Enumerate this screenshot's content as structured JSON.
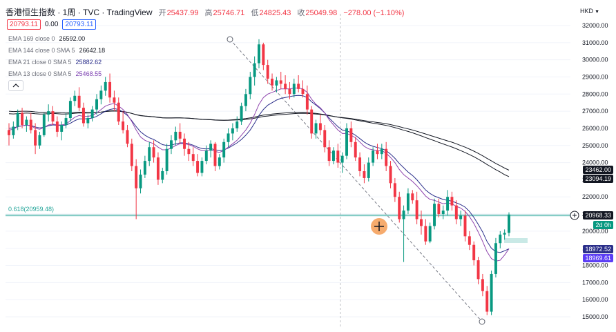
{
  "header": {
    "symbol": "香港恒生指数 · 1周 · TVC · TradingView",
    "open_label": "开",
    "open": "25437.99",
    "high_label": "高",
    "high": "25746.71",
    "low_label": "低",
    "low": "24825.43",
    "close_label": "收",
    "close": "25049.98",
    "change": "−278.00 (−1.10%)",
    "sell_price": "20793.11",
    "spread": "0.00",
    "buy_price": "20793.11",
    "currency": "HKD"
  },
  "indicators": [
    {
      "label": "EMA 169 close 0",
      "value": "26592.00",
      "color": "#131722"
    },
    {
      "label": "EMA 144 close 0 SMA 5",
      "value": "26642.18",
      "color": "#131722"
    },
    {
      "label": "EMA 21 close 0 SMA 5",
      "value": "25882.62",
      "color": "#2a2e8a"
    },
    {
      "label": "EMA 13 close 0 SMA 5",
      "value": "25468.55",
      "color": "#7b3fb0"
    }
  ],
  "colors": {
    "up": "#089981",
    "down": "#f23645",
    "ema_long": "#131722",
    "ema_21": "#2a2e8a",
    "ema_13": "#8e44ad",
    "fib": "#26a69a",
    "blue_tag": "#5b3df5"
  },
  "price_tags": {
    "ema_long_a": "23462.00",
    "ema_long_b": "23094.19",
    "last_price": "20968.33",
    "countdown": "2d 0h",
    "ema_21": "18972.52",
    "ema_13": "18969.61"
  },
  "fib_label": "0.618(20959.48)",
  "chart_data": {
    "type": "candlestick",
    "y_axis": {
      "min": 14700,
      "max": 32300,
      "ticks": [
        15000,
        16000,
        17000,
        18000,
        19000,
        20000,
        21000,
        22000,
        23000,
        24000,
        25000,
        26000,
        27000,
        28000,
        29000,
        30000,
        31000,
        32000
      ]
    },
    "candles": [
      [
        25900,
        26300,
        25000,
        25600
      ],
      [
        25600,
        26400,
        25400,
        26100
      ],
      [
        26100,
        27100,
        25900,
        26900
      ],
      [
        26900,
        27200,
        26000,
        26200
      ],
      [
        26200,
        26700,
        25800,
        26500
      ],
      [
        26500,
        26900,
        25700,
        25900
      ],
      [
        25900,
        26300,
        24500,
        25000
      ],
      [
        25000,
        25800,
        24800,
        25600
      ],
      [
        25600,
        26900,
        25500,
        26800
      ],
      [
        26800,
        27400,
        26400,
        27000
      ],
      [
        27000,
        27300,
        26200,
        26400
      ],
      [
        26400,
        26700,
        25500,
        25800
      ],
      [
        25800,
        26400,
        25300,
        26200
      ],
      [
        26200,
        26900,
        26000,
        26600
      ],
      [
        26600,
        27800,
        26400,
        27600
      ],
      [
        27600,
        28200,
        27300,
        27900
      ],
      [
        27900,
        28400,
        27000,
        27200
      ],
      [
        27200,
        27500,
        26100,
        26300
      ],
      [
        26300,
        26800,
        26000,
        26600
      ],
      [
        26600,
        27300,
        26400,
        27100
      ],
      [
        27100,
        28000,
        26800,
        27700
      ],
      [
        27700,
        28500,
        27400,
        28200
      ],
      [
        28200,
        29000,
        27900,
        28700
      ],
      [
        28700,
        29200,
        27500,
        27800
      ],
      [
        27800,
        28200,
        27000,
        27500
      ],
      [
        27500,
        27800,
        26200,
        26400
      ],
      [
        26400,
        27000,
        25700,
        25900
      ],
      [
        25900,
        26200,
        24900,
        25100
      ],
      [
        25100,
        25400,
        23500,
        23800
      ],
      [
        23800,
        24200,
        20700,
        22500
      ],
      [
        22500,
        23600,
        22200,
        23300
      ],
      [
        23300,
        24400,
        23100,
        24100
      ],
      [
        24100,
        25200,
        23800,
        24900
      ],
      [
        24900,
        25300,
        24000,
        24300
      ],
      [
        24300,
        24600,
        22700,
        23000
      ],
      [
        23000,
        23700,
        22800,
        23500
      ],
      [
        23500,
        25100,
        23300,
        24800
      ],
      [
        24800,
        25600,
        24500,
        25300
      ],
      [
        25300,
        26100,
        25000,
        25800
      ],
      [
        25800,
        26300,
        25100,
        25400
      ],
      [
        25400,
        25700,
        24400,
        24800
      ],
      [
        24800,
        25200,
        24100,
        24500
      ],
      [
        24500,
        24900,
        23800,
        24100
      ],
      [
        24100,
        24500,
        23200,
        23400
      ],
      [
        23400,
        24300,
        23200,
        24100
      ],
      [
        24100,
        25000,
        23900,
        24700
      ],
      [
        24700,
        25300,
        24300,
        25100
      ],
      [
        25100,
        25200,
        23500,
        23800
      ],
      [
        23800,
        24500,
        23600,
        24300
      ],
      [
        24300,
        25400,
        24000,
        25200
      ],
      [
        25200,
        26000,
        24900,
        25700
      ],
      [
        25700,
        26300,
        25300,
        26000
      ],
      [
        26000,
        26700,
        25800,
        26400
      ],
      [
        26400,
        27500,
        26200,
        27300
      ],
      [
        27300,
        28300,
        27000,
        28000
      ],
      [
        28000,
        29300,
        27700,
        29000
      ],
      [
        29000,
        30200,
        28500,
        29800
      ],
      [
        29800,
        31200,
        29500,
        30900
      ],
      [
        30900,
        31000,
        29400,
        29700
      ],
      [
        29700,
        30000,
        28600,
        28900
      ],
      [
        28900,
        29200,
        28200,
        28500
      ],
      [
        28500,
        29000,
        28100,
        28800
      ],
      [
        28800,
        29300,
        28300,
        28600
      ],
      [
        28600,
        29100,
        28000,
        28300
      ],
      [
        28300,
        28700,
        27700,
        28000
      ],
      [
        28000,
        28900,
        27800,
        28600
      ],
      [
        28600,
        29100,
        28100,
        28300
      ],
      [
        28300,
        28800,
        27800,
        28000
      ],
      [
        28000,
        28500,
        26800,
        27100
      ],
      [
        27100,
        27300,
        25400,
        25700
      ],
      [
        25700,
        26500,
        25400,
        26300
      ],
      [
        26300,
        26800,
        25600,
        25900
      ],
      [
        25900,
        26200,
        24600,
        24900
      ],
      [
        24900,
        25300,
        23800,
        24100
      ],
      [
        24100,
        24900,
        23900,
        24700
      ],
      [
        24700,
        25100,
        23700,
        24000
      ],
      [
        24000,
        24600,
        23400,
        24400
      ],
      [
        24400,
        26300,
        24200,
        26000
      ],
      [
        26000,
        26400,
        24900,
        25200
      ],
      [
        25200,
        25500,
        24100,
        24300
      ],
      [
        24300,
        24600,
        23200,
        23500
      ],
      [
        23500,
        23900,
        22800,
        23100
      ],
      [
        23100,
        24300,
        22900,
        24000
      ],
      [
        24000,
        24900,
        23800,
        24700
      ],
      [
        24700,
        25100,
        24200,
        24500
      ],
      [
        24500,
        25100,
        24200,
        24800
      ],
      [
        24800,
        25200,
        23500,
        23800
      ],
      [
        23800,
        24100,
        22500,
        22800
      ],
      [
        22800,
        23100,
        21700,
        22000
      ],
      [
        22000,
        22300,
        20500,
        20700
      ],
      [
        20700,
        21500,
        18200,
        21200
      ],
      [
        21200,
        22500,
        21000,
        22200
      ],
      [
        22200,
        22400,
        21600,
        21800
      ],
      [
        21800,
        22300,
        20400,
        20700
      ],
      [
        20700,
        21200,
        19800,
        20300
      ],
      [
        20300,
        20700,
        19200,
        19400
      ],
      [
        19400,
        20500,
        19300,
        20300
      ],
      [
        20300,
        21900,
        20100,
        21600
      ],
      [
        21600,
        21900,
        20800,
        21000
      ],
      [
        21000,
        21500,
        20700,
        21200
      ],
      [
        21200,
        22400,
        20900,
        22000
      ],
      [
        22000,
        22300,
        21200,
        21500
      ],
      [
        21500,
        21800,
        20400,
        20700
      ],
      [
        20700,
        21200,
        20300,
        20900
      ],
      [
        20900,
        21200,
        19400,
        19700
      ],
      [
        19700,
        20000,
        18900,
        19200
      ],
      [
        19200,
        19400,
        18000,
        18300
      ],
      [
        18300,
        18500,
        16900,
        17200
      ],
      [
        17200,
        17500,
        16200,
        16500
      ],
      [
        16500,
        16800,
        15100,
        15300
      ],
      [
        15300,
        17700,
        15100,
        17500
      ],
      [
        17500,
        19600,
        17300,
        19300
      ],
      [
        19300,
        20000,
        19000,
        19800
      ],
      [
        19800,
        20100,
        19500,
        19900
      ],
      [
        19900,
        21100,
        19700,
        20968
      ]
    ],
    "ema_13": [
      25900,
      25950,
      26100,
      26150,
      26200,
      26150,
      26000,
      25950,
      26050,
      26200,
      26250,
      26200,
      26200,
      26250,
      26450,
      26650,
      26750,
      26700,
      26700,
      26750,
      26900,
      27100,
      27300,
      27400,
      27450,
      27300,
      27100,
      26800,
      26400,
      25900,
      25500,
      25300,
      25200,
      25100,
      24900,
      24750,
      24750,
      24850,
      25000,
      25100,
      25100,
      25050,
      24950,
      24800,
      24700,
      24700,
      24750,
      24650,
      24600,
      24700,
      24900,
      25100,
      25300,
      25600,
      25900,
      26300,
      26800,
      27400,
      27800,
      28000,
      28100,
      28200,
      28300,
      28300,
      28300,
      28350,
      28350,
      28300,
      28100,
      27700,
      27400,
      27200,
      26900,
      26500,
      26200,
      25900,
      25700,
      25700,
      25600,
      25450,
      25200,
      24950,
      24800,
      24750,
      24700,
      24700,
      24550,
      24300,
      24000,
      23600,
      23300,
      23100,
      22900,
      22650,
      22350,
      22050,
      21850,
      21800,
      21700,
      21600,
      21650,
      21600,
      21450,
      21350,
      21150,
      20850,
      20450,
      19950,
      19400,
      18800,
      18400,
      18250,
      18300,
      18600,
      18970
    ],
    "ema_21": [
      26000,
      26020,
      26100,
      26150,
      26180,
      26170,
      26080,
      26030,
      26060,
      26150,
      26200,
      26180,
      26170,
      26190,
      26300,
      26450,
      26550,
      26550,
      26560,
      26600,
      26700,
      26850,
      27000,
      27100,
      27150,
      27100,
      26950,
      26750,
      26450,
      26100,
      25800,
      25600,
      25450,
      25350,
      25200,
      25050,
      25000,
      25020,
      25100,
      25150,
      25150,
      25100,
      25020,
      24900,
      24820,
      24800,
      24820,
      24750,
      24700,
      24750,
      24850,
      25000,
      25150,
      25350,
      25600,
      25900,
      26300,
      26750,
      27100,
      27350,
      27500,
      27650,
      27750,
      27800,
      27850,
      27900,
      27920,
      27900,
      27800,
      27550,
      27350,
      27150,
      26900,
      26600,
      26350,
      26100,
      25900,
      25850,
      25750,
      25600,
      25400,
      25200,
      25050,
      24950,
      24880,
      24820,
      24700,
      24500,
      24250,
      23950,
      23700,
      23450,
      23250,
      23000,
      22700,
      22400,
      22200,
      22050,
      21950,
      21850,
      21800,
      21750,
      21650,
      21550,
      21400,
      21150,
      20800,
      20400,
      19950,
      19400,
      19000,
      18800,
      18750,
      18850,
      18970
    ],
    "ema_169": [
      27000,
      26980,
      26990,
      27000,
      27000,
      26990,
      26960,
      26940,
      26940,
      26950,
      26950,
      26930,
      26910,
      26900,
      26910,
      26930,
      26940,
      26930,
      26920,
      26920,
      26930,
      26950,
      26980,
      27000,
      27010,
      27000,
      26970,
      26930,
      26870,
      26800,
      26750,
      26720,
      26700,
      26680,
      26650,
      26620,
      26610,
      26610,
      26610,
      26610,
      26600,
      26590,
      26570,
      26550,
      26530,
      26520,
      26510,
      26490,
      26480,
      26470,
      26470,
      26480,
      26490,
      26500,
      26520,
      26550,
      26590,
      26640,
      26690,
      26720,
      26750,
      26780,
      26800,
      26820,
      26840,
      26860,
      26870,
      26880,
      26870,
      26850,
      26830,
      26810,
      26780,
      26740,
      26700,
      26660,
      26630,
      26600,
      26570,
      26530,
      26490,
      26450,
      26410,
      26380,
      26340,
      26310,
      26270,
      26220,
      26160,
      26100,
      26030,
      25970,
      25900,
      25830,
      25750,
      25670,
      25590,
      25510,
      25430,
      25350,
      25270,
      25190,
      25100,
      25000,
      24900,
      24790,
      24670,
      24540,
      24400,
      24250,
      24100,
      23950,
      23820,
      23680,
      23560
    ],
    "ema_144": [
      26850,
      26840,
      26860,
      26880,
      26890,
      26880,
      26850,
      26830,
      26840,
      26860,
      26870,
      26850,
      26830,
      26830,
      26850,
      26880,
      26900,
      26890,
      26890,
      26900,
      26920,
      26950,
      26990,
      27020,
      27030,
      27020,
      26990,
      26940,
      26870,
      26790,
      26740,
      26710,
      26690,
      26670,
      26640,
      26610,
      26600,
      26600,
      26610,
      26610,
      26600,
      26590,
      26570,
      26540,
      26520,
      26510,
      26500,
      26480,
      26470,
      26470,
      26480,
      26500,
      26520,
      26540,
      26570,
      26610,
      26660,
      26720,
      26770,
      26800,
      26830,
      26860,
      26880,
      26900,
      26920,
      26930,
      26940,
      26940,
      26930,
      26900,
      26870,
      26840,
      26800,
      26750,
      26700,
      26650,
      26610,
      26580,
      26540,
      26490,
      26440,
      26390,
      26350,
      26300,
      26260,
      26220,
      26170,
      26110,
      26040,
      25970,
      25890,
      25820,
      25740,
      25650,
      25560,
      25460,
      25370,
      25280,
      25180,
      25090,
      25000,
      24910,
      24810,
      24700,
      24590,
      24470,
      24340,
      24200,
      24050,
      23890,
      23740,
      23590,
      23450,
      23300,
      23180
    ]
  }
}
